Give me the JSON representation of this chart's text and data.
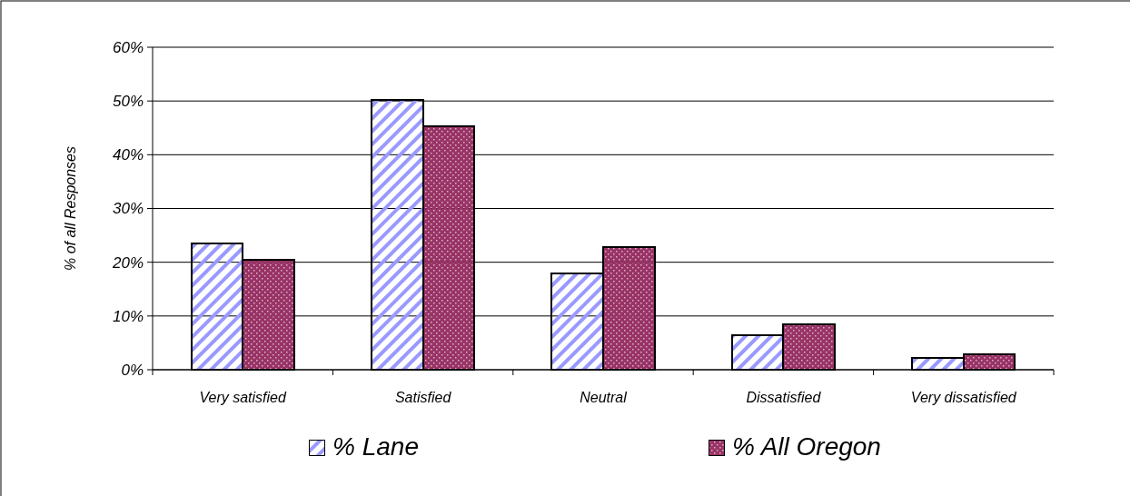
{
  "chart_data": {
    "type": "bar",
    "ylabel": "% of all Responses",
    "categories": [
      "Very satisfied",
      "Satisfied",
      "Neutral",
      "Dissatisfied",
      "Very dissatisfied"
    ],
    "series": [
      {
        "name": "% Lane",
        "color": "#9999ff",
        "values": [
          23.5,
          50.2,
          17.9,
          6.4,
          2.2
        ]
      },
      {
        "name": "% All Oregon",
        "color": "#993366",
        "values": [
          20.5,
          45.3,
          22.8,
          8.5,
          2.9
        ]
      }
    ],
    "ylim": [
      0,
      60
    ],
    "yticks": [
      {
        "value": 0,
        "label": "0%"
      },
      {
        "value": 10,
        "label": "10%"
      },
      {
        "value": 20,
        "label": "20%"
      },
      {
        "value": 30,
        "label": "30%"
      },
      {
        "value": 40,
        "label": "40%"
      },
      {
        "value": 50,
        "label": "50%"
      },
      {
        "value": 60,
        "label": "60%"
      }
    ],
    "grid": "y",
    "legend": "bottom"
  }
}
